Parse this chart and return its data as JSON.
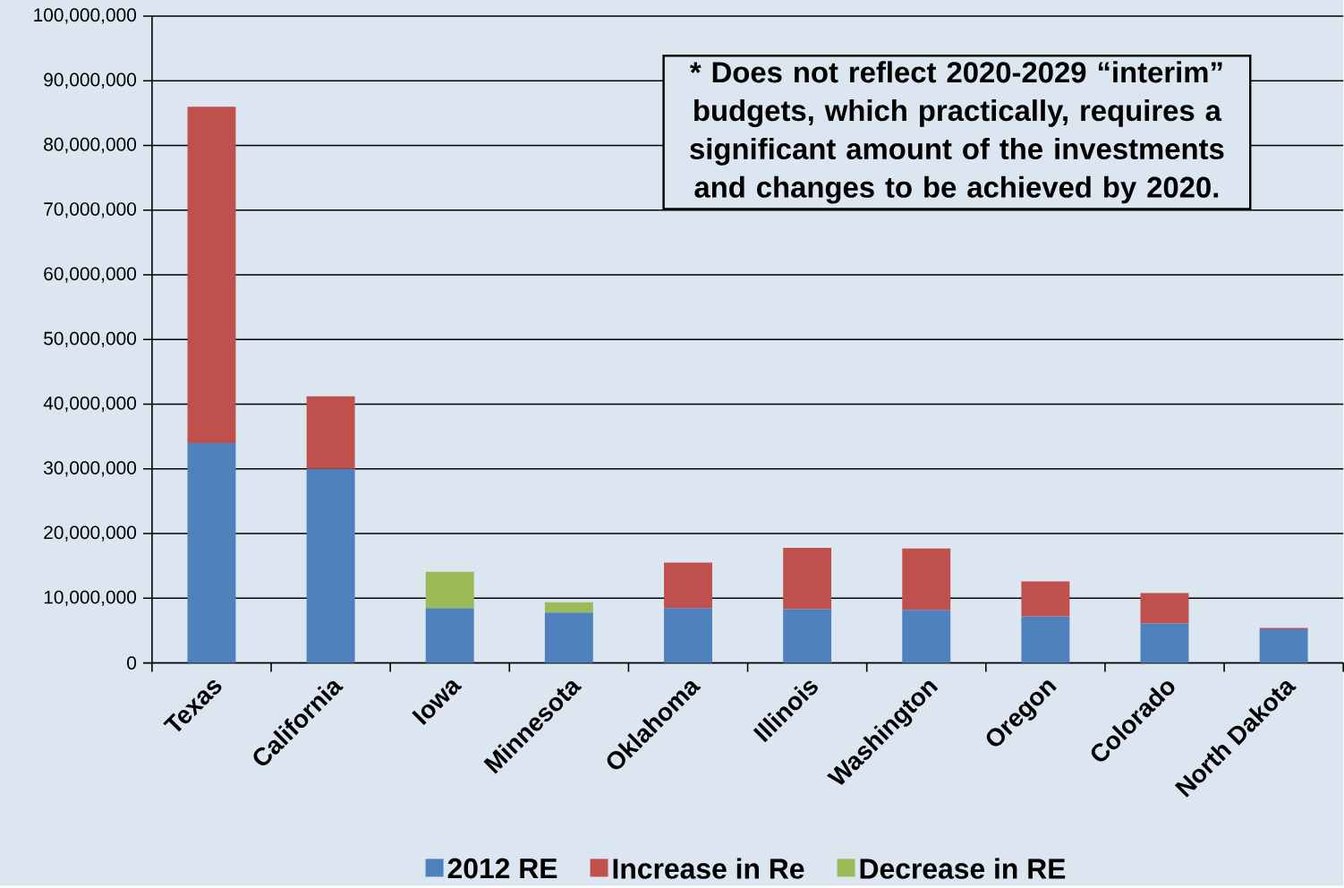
{
  "chart_data": {
    "type": "bar",
    "stacked": true,
    "categories": [
      "Texas",
      "California",
      "Iowa",
      "Minnesota",
      "Oklahoma",
      "Illinois",
      "Washington",
      "Oregon",
      "Colorado",
      "North Dakota"
    ],
    "series": [
      {
        "name": "2012 RE",
        "color": "#4f81bd",
        "values": [
          34000000,
          30000000,
          8500000,
          7800000,
          8500000,
          8300000,
          8200000,
          7200000,
          6100000,
          5200000
        ]
      },
      {
        "name": "Increase in Re",
        "color": "#c0504d",
        "values": [
          52000000,
          11200000,
          null,
          null,
          7000000,
          9500000,
          9500000,
          5400000,
          4700000,
          200000
        ]
      },
      {
        "name": "Decrease in RE",
        "color": "#9bbb59",
        "values": [
          null,
          null,
          5600000,
          1600000,
          null,
          null,
          null,
          null,
          null,
          null
        ]
      }
    ],
    "ylim": [
      0,
      100000000
    ],
    "yticks": [
      {
        "value": 0,
        "label": "0"
      },
      {
        "value": 10000000,
        "label": "10,000,000"
      },
      {
        "value": 20000000,
        "label": "20,000,000"
      },
      {
        "value": 30000000,
        "label": "30,000,000"
      },
      {
        "value": 40000000,
        "label": "40,000,000"
      },
      {
        "value": 50000000,
        "label": "50,000,000"
      },
      {
        "value": 60000000,
        "label": "60,000,000"
      },
      {
        "value": 70000000,
        "label": "70,000,000"
      },
      {
        "value": 80000000,
        "label": "80,000,000"
      },
      {
        "value": 90000000,
        "label": "90,000,000"
      },
      {
        "value": 100000000,
        "label": "100,000,000"
      }
    ],
    "grid": "y",
    "legend": "bottom",
    "annotations": [
      "* Does not reflect 2020-2029 “interim” budgets, which practically, requires a significant amount of the investments and changes to be achieved by 2020."
    ]
  }
}
